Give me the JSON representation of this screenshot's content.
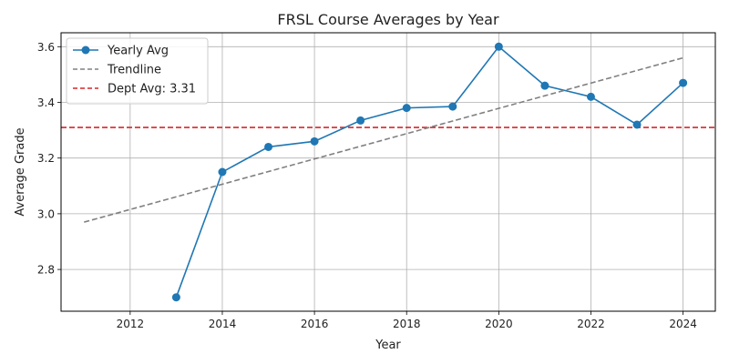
{
  "chart_data": {
    "type": "line",
    "title": "FRSL Course Averages by Year",
    "xlabel": "Year",
    "ylabel": "Average Grade",
    "xlim": [
      2010.5,
      2024.7
    ],
    "ylim": [
      2.65,
      3.65
    ],
    "xticks": [
      2012,
      2014,
      2016,
      2018,
      2020,
      2022,
      2024
    ],
    "yticks": [
      2.8,
      3.0,
      3.2,
      3.4,
      3.6
    ],
    "ytick_labels": [
      "2.8",
      "3.0",
      "3.2",
      "3.4",
      "3.6"
    ],
    "grid": true,
    "legend_position": "upper-left",
    "series": [
      {
        "name": "Yearly Avg",
        "style": "solid-markers",
        "color": "#1f77b4",
        "x": [
          2013,
          2014,
          2015,
          2016,
          2017,
          2018,
          2019,
          2020,
          2021,
          2022,
          2023,
          2024
        ],
        "y": [
          2.7,
          3.15,
          3.24,
          3.26,
          3.335,
          3.38,
          3.385,
          3.6,
          3.46,
          3.42,
          3.32,
          3.47
        ]
      },
      {
        "name": "Trendline",
        "style": "dashed",
        "color": "#808080",
        "x": [
          2011,
          2024
        ],
        "y": [
          2.97,
          3.56
        ]
      }
    ],
    "reference_lines": [
      {
        "name": "Dept Avg: 3.31",
        "axis": "y",
        "value": 3.31,
        "style": "dashed",
        "color": "#d62728"
      }
    ]
  }
}
